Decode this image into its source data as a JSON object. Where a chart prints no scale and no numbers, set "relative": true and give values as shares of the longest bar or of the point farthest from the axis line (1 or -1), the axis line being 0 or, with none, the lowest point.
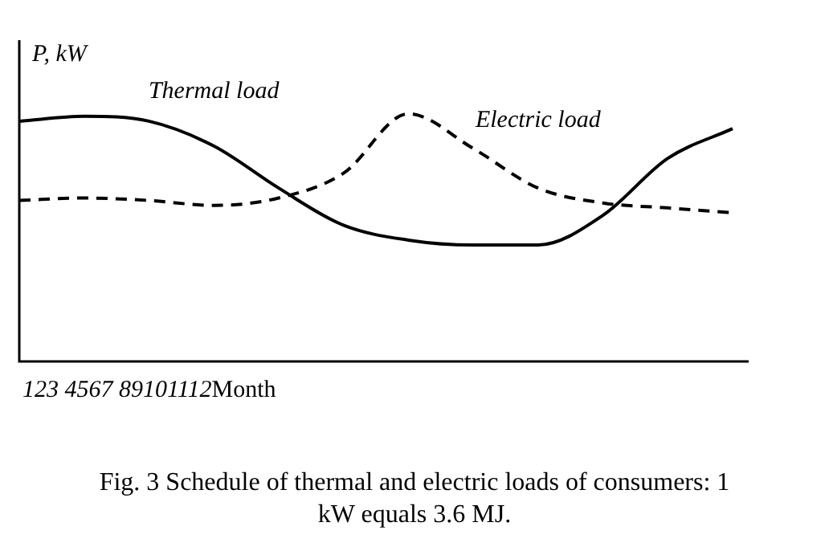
{
  "chart_data": {
    "type": "line",
    "title": "Fig. 3 Schedule of thermal and electric loads of consumers: 1 kW equals 3.6 MJ.",
    "xlabel": "Month",
    "ylabel": "P, kW",
    "relative": true,
    "annotations": [
      "123 4567 89101112"
    ],
    "categories": [
      null,
      null,
      null,
      null,
      null,
      null,
      null,
      null,
      null,
      null,
      null,
      null
    ],
    "series": [
      {
        "name": "Thermal load",
        "color": "#000000",
        "line_style": "solid",
        "values": [
          0.97,
          0.99,
          0.97,
          0.87,
          0.7,
          0.55,
          0.49,
          0.47,
          0.47,
          0.59,
          0.82,
          0.94
        ]
      },
      {
        "name": "Electric load",
        "color": "#000000",
        "line_style": "dashed",
        "values": [
          0.65,
          0.66,
          0.65,
          0.63,
          0.66,
          0.76,
          1,
          0.86,
          0.7,
          0.64,
          0.62,
          0.6
        ]
      }
    ],
    "grid": false,
    "legend": false,
    "marker": "none"
  }
}
